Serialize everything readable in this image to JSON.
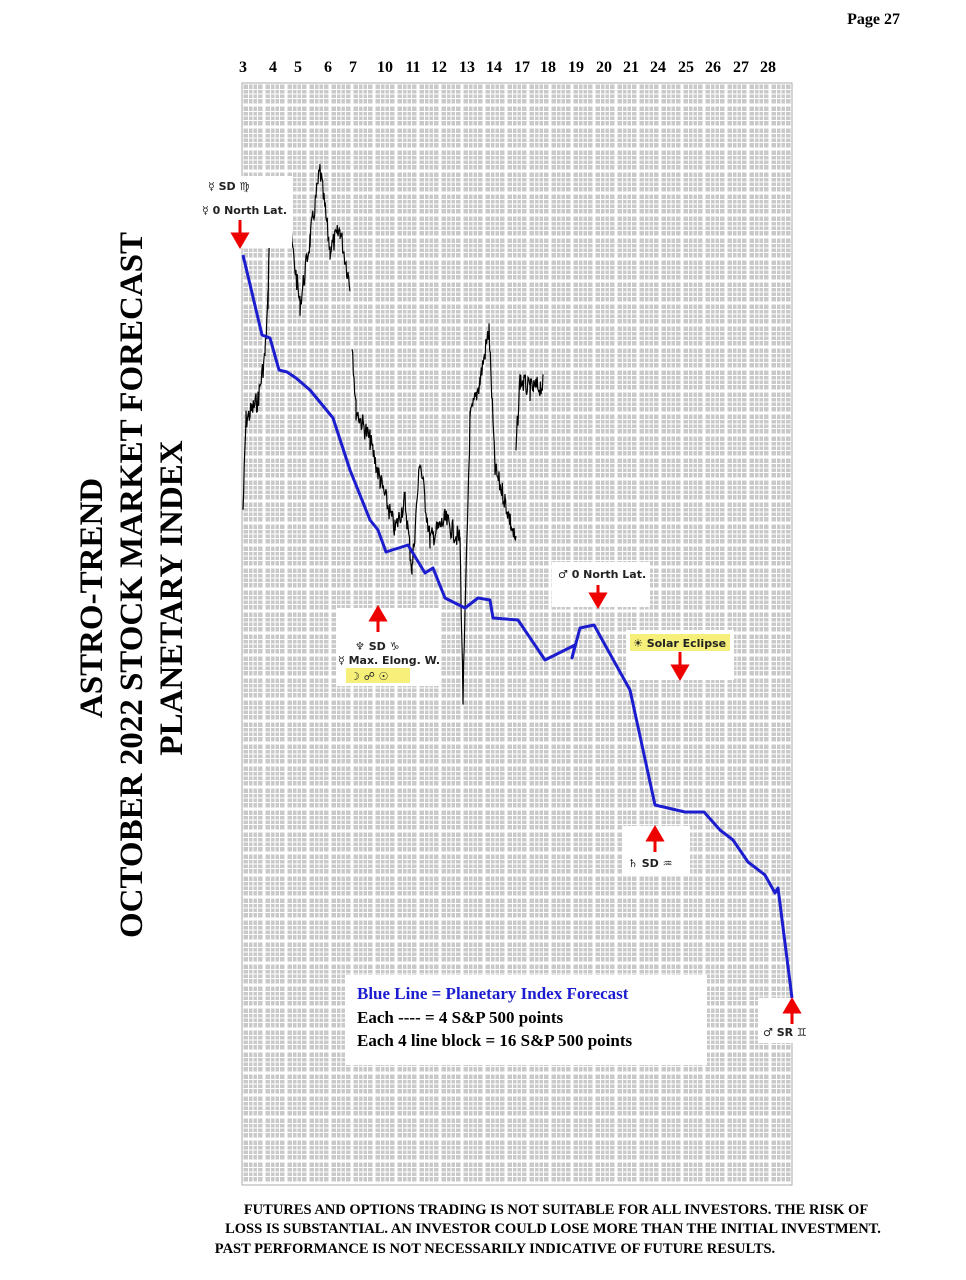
{
  "header": {
    "page": "Page  27"
  },
  "title": {
    "line1": "ASTRO-TREND",
    "line2": "OCTOBER 2022 STOCK MARKET FORECAST",
    "line3": "PLANETARY INDEX"
  },
  "dates": [
    "3",
    "4",
    "5",
    "6",
    "7",
    "10",
    "11",
    "12",
    "13",
    "14",
    "17",
    "18",
    "19",
    "20",
    "21",
    "24",
    "25",
    "26",
    "27",
    "28"
  ],
  "annotations": {
    "mercury_sd": "☿ SD ♍",
    "mercury_lat": "☿ 0 North Lat.",
    "neptune_sd": "♆ SD ♑",
    "mercury_elong": "☿ Max. Elong. W.",
    "moon_opp_sun": "☽ ☍ ☉",
    "mars_lat": "♂ 0 North Lat.",
    "eclipse": "☀ Solar Eclipse",
    "saturn_sd": "♄ SD ♒",
    "mars_sr": "♂ SR ♊"
  },
  "legend": {
    "line1": "Blue Line = Planetary Index Forecast",
    "line2": "Each ---- =    4 S&P 500 points",
    "line3": "Each 4 line block =  16  S&P 500 points"
  },
  "disclaimer": [
    "FUTURES AND OPTIONS TRADING IS NOT SUITABLE FOR ALL INVESTORS.  THE RISK OF",
    "LOSS IS SUBSTANTIAL.  AN INVESTOR COULD LOSE MORE THAN THE INITIAL INVESTMENT.",
    "PAST PERFORMANCE IS NOT NECESSARILY INDICATIVE OF FUTURE RESULTS."
  ]
}
